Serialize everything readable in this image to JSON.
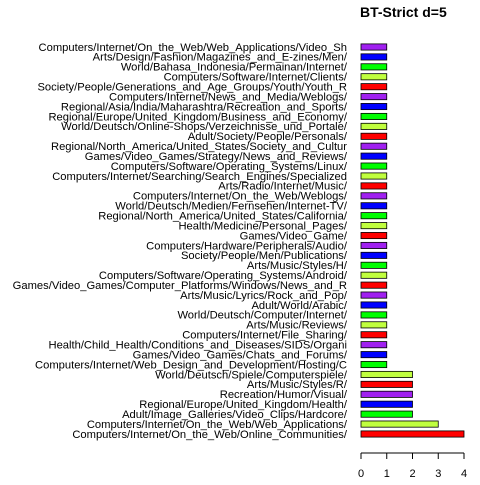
{
  "chart_data": {
    "type": "bar",
    "orientation": "horizontal",
    "title": "BT-Strict d=5",
    "xlabel": "",
    "ylabel": "",
    "xlim": [
      0,
      4
    ],
    "xticks": [
      "0",
      "1",
      "2",
      "3",
      "4"
    ],
    "grid": false,
    "legend": "none",
    "bars": [
      {
        "label": "Computers/Internet/On_the_Web/Web_Applications/Video_Sh",
        "value": 1,
        "color": "#a020f0"
      },
      {
        "label": "Arts/Design/Fashion/Magazines_and_E-zines/Men/",
        "value": 1,
        "color": "#0000ff"
      },
      {
        "label": "World/Bahasa_Indonesia/Permainan/Internet/",
        "value": 1,
        "color": "#00ff00"
      },
      {
        "label": "Computers/Software/Internet/Clients/",
        "value": 1,
        "color": "#c0ff3e"
      },
      {
        "label": "Society/People/Generations_and_Age_Groups/Youth/Youth_R",
        "value": 1,
        "color": "#ff0000"
      },
      {
        "label": "Computers/Internet/News_and_Media/Weblogs/",
        "value": 1,
        "color": "#a020f0"
      },
      {
        "label": "Regional/Asia/India/Maharashtra/Recreation_and_Sports/",
        "value": 1,
        "color": "#0000ff"
      },
      {
        "label": "Regional/Europe/United_Kingdom/Business_and_Economy/",
        "value": 1,
        "color": "#00ff00"
      },
      {
        "label": "World/Deutsch/Online-Shops/Verzeichnisse_und_Portale/",
        "value": 1,
        "color": "#c0ff3e"
      },
      {
        "label": "Adult/Society/People/Personals/",
        "value": 1,
        "color": "#ff0000"
      },
      {
        "label": "Regional/North_America/United_States/Society_and_Cultur",
        "value": 1,
        "color": "#a020f0"
      },
      {
        "label": "Games/Video_Games/Strategy/News_and_Reviews/",
        "value": 1,
        "color": "#0000ff"
      },
      {
        "label": "Computers/Software/Operating_Systems/Linux/",
        "value": 1,
        "color": "#00ff00"
      },
      {
        "label": "Computers/Internet/Searching/Search_Engines/Specialized",
        "value": 1,
        "color": "#c0ff3e"
      },
      {
        "label": "Arts/Radio/Internet/Music/",
        "value": 1,
        "color": "#ff0000"
      },
      {
        "label": "Computers/Internet/On_the_Web/Weblogs/",
        "value": 1,
        "color": "#a020f0"
      },
      {
        "label": "World/Deutsch/Medien/Fernsehen/Internet-TV/",
        "value": 1,
        "color": "#0000ff"
      },
      {
        "label": "Regional/North_America/United_States/California/",
        "value": 1,
        "color": "#00ff00"
      },
      {
        "label": "Health/Medicine/Personal_Pages/",
        "value": 1,
        "color": "#c0ff3e"
      },
      {
        "label": "Games/Video_Game/",
        "value": 1,
        "color": "#ff0000"
      },
      {
        "label": "Computers/Hardware/Peripherals/Audio/",
        "value": 1,
        "color": "#a020f0"
      },
      {
        "label": "Society/People/Men/Publications/",
        "value": 1,
        "color": "#0000ff"
      },
      {
        "label": "Arts/Music/Styles/H/",
        "value": 1,
        "color": "#00ff00"
      },
      {
        "label": "Computers/Software/Operating_Systems/Android/",
        "value": 1,
        "color": "#c0ff3e"
      },
      {
        "label": "Games/Video_Games/Computer_Platforms/Windows/News_and_R",
        "value": 1,
        "color": "#ff0000"
      },
      {
        "label": "Arts/Music/Lyrics/Rock_and_Pop/",
        "value": 1,
        "color": "#a020f0"
      },
      {
        "label": "Adult/World/Arabic/",
        "value": 1,
        "color": "#0000ff"
      },
      {
        "label": "World/Deutsch/Computer/Internet/",
        "value": 1,
        "color": "#00ff00"
      },
      {
        "label": "Arts/Music/Reviews/",
        "value": 1,
        "color": "#c0ff3e"
      },
      {
        "label": "Computers/Internet/File_Sharing/",
        "value": 1,
        "color": "#ff0000"
      },
      {
        "label": "Health/Child_Health/Conditions_and_Diseases/SIDS/Organi",
        "value": 1,
        "color": "#a020f0"
      },
      {
        "label": "Games/Video_Games/Chats_and_Forums/",
        "value": 1,
        "color": "#0000ff"
      },
      {
        "label": "Computers/Internet/Web_Design_and_Development/Hosting/C",
        "value": 1,
        "color": "#00ff00"
      },
      {
        "label": "World/Deutsch/Spiele/Computerspiele/",
        "value": 2,
        "color": "#c0ff3e"
      },
      {
        "label": "Arts/Music/Styles/R/",
        "value": 2,
        "color": "#ff0000"
      },
      {
        "label": "Recreation/Humor/Visual/",
        "value": 2,
        "color": "#a020f0"
      },
      {
        "label": "Regional/Europe/United_Kingdom/Health/",
        "value": 2,
        "color": "#0000ff"
      },
      {
        "label": "Adult/Image_Galleries/Video_Clips/Hardcore/",
        "value": 2,
        "color": "#00ff00"
      },
      {
        "label": "Computers/Internet/On_the_Web/Web_Applications/",
        "value": 3,
        "color": "#c0ff3e"
      },
      {
        "label": "Computers/Internet/On_the_Web/Online_Communities/",
        "value": 4,
        "color": "#ff0000"
      }
    ]
  }
}
